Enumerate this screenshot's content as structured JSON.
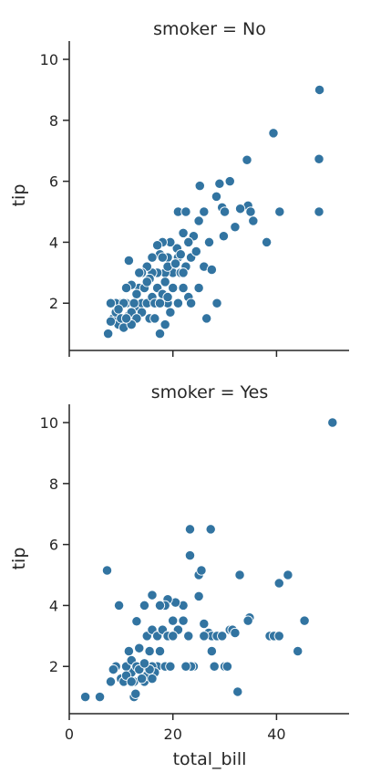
{
  "chart_data": {
    "type": "scatter",
    "xlabel": "total_bill",
    "ylabel": "tip",
    "xlim": [
      0,
      54
    ],
    "ylim": [
      0.45,
      10.6
    ],
    "xticks": [
      0,
      20,
      40
    ],
    "yticks": [
      2,
      4,
      6,
      8,
      10
    ],
    "grid": false,
    "legend": "none",
    "point_color": "#3274A1",
    "facets": [
      {
        "title": "smoker = No",
        "points": [
          [
            48.3,
            9.0
          ],
          [
            39.4,
            7.58
          ],
          [
            48.2,
            6.73
          ],
          [
            34.3,
            6.7
          ],
          [
            48.2,
            5.0
          ],
          [
            40.6,
            5.0
          ],
          [
            25.2,
            5.85
          ],
          [
            29.0,
            5.92
          ],
          [
            31.0,
            6.0
          ],
          [
            21.0,
            5.0
          ],
          [
            22.5,
            5.0
          ],
          [
            26.0,
            5.0
          ],
          [
            29.5,
            5.14
          ],
          [
            30.0,
            5.0
          ],
          [
            34.5,
            5.2
          ],
          [
            35.0,
            5.0
          ],
          [
            35.5,
            4.7
          ],
          [
            32.0,
            4.5
          ],
          [
            38.1,
            4.0
          ],
          [
            28.4,
            5.5
          ],
          [
            33.0,
            5.1
          ],
          [
            29.8,
            4.2
          ],
          [
            27.0,
            4.0
          ],
          [
            25.0,
            4.7
          ],
          [
            24.0,
            4.2
          ],
          [
            23.0,
            4.0
          ],
          [
            22.0,
            4.3
          ],
          [
            20.8,
            3.8
          ],
          [
            19.5,
            4.0
          ],
          [
            18.0,
            4.0
          ],
          [
            17.5,
            3.6
          ],
          [
            19.0,
            3.5
          ],
          [
            21.0,
            3.5
          ],
          [
            23.5,
            3.5
          ],
          [
            24.5,
            3.7
          ],
          [
            26.0,
            3.2
          ],
          [
            27.5,
            3.1
          ],
          [
            25.0,
            2.5
          ],
          [
            28.5,
            2.0
          ],
          [
            26.5,
            1.5
          ],
          [
            22.0,
            2.5
          ],
          [
            23.0,
            2.2
          ],
          [
            20.0,
            3.0
          ],
          [
            21.5,
            3.0
          ],
          [
            22.5,
            3.2
          ],
          [
            18.5,
            3.0
          ],
          [
            17.0,
            3.0
          ],
          [
            16.0,
            3.0
          ],
          [
            15.0,
            3.2
          ],
          [
            14.0,
            3.0
          ],
          [
            13.5,
            2.5
          ],
          [
            12.0,
            2.6
          ],
          [
            11.5,
            3.4
          ],
          [
            11.0,
            2.0
          ],
          [
            10.0,
            2.0
          ],
          [
            9.0,
            2.0
          ],
          [
            8.0,
            2.0
          ],
          [
            7.5,
            1.0
          ],
          [
            8.5,
            1.5
          ],
          [
            9.5,
            1.3
          ],
          [
            10.5,
            1.2
          ],
          [
            9.0,
            1.7
          ],
          [
            10.0,
            1.5
          ],
          [
            11.5,
            1.6
          ],
          [
            12.5,
            1.6
          ],
          [
            13.0,
            1.9
          ],
          [
            14.0,
            2.0
          ],
          [
            15.0,
            2.0
          ],
          [
            16.0,
            2.2
          ],
          [
            17.0,
            2.5
          ],
          [
            18.0,
            2.3
          ],
          [
            19.0,
            2.0
          ],
          [
            20.0,
            2.5
          ],
          [
            15.5,
            1.5
          ],
          [
            16.5,
            1.5
          ],
          [
            17.5,
            1.0
          ],
          [
            18.5,
            1.3
          ],
          [
            19.5,
            1.7
          ],
          [
            14.5,
            2.5
          ],
          [
            13.5,
            3.0
          ],
          [
            12.5,
            2.0
          ],
          [
            11.0,
            2.5
          ],
          [
            16.0,
            3.5
          ],
          [
            17.0,
            3.9
          ],
          [
            18.0,
            3.5
          ],
          [
            19.0,
            3.2
          ],
          [
            20.5,
            3.3
          ],
          [
            21.5,
            3.6
          ],
          [
            22.0,
            3.0
          ],
          [
            18.5,
            2.7
          ],
          [
            15.5,
            2.8
          ],
          [
            13.0,
            2.3
          ],
          [
            10.5,
            2.0
          ],
          [
            9.5,
            1.8
          ],
          [
            8.0,
            1.4
          ],
          [
            12.0,
            1.7
          ],
          [
            16.5,
            2.0
          ],
          [
            17.5,
            2.0
          ],
          [
            19.0,
            2.2
          ],
          [
            21.0,
            2.0
          ],
          [
            23.5,
            2.0
          ],
          [
            15.0,
            2.7
          ],
          [
            14.0,
            1.7
          ],
          [
            13.0,
            1.5
          ],
          [
            12.0,
            1.3
          ],
          [
            11.0,
            1.5
          ]
        ]
      },
      {
        "title": "smoker = Yes",
        "points": [
          [
            50.8,
            10.0
          ],
          [
            23.3,
            6.5
          ],
          [
            27.3,
            6.5
          ],
          [
            23.3,
            5.64
          ],
          [
            7.3,
            5.15
          ],
          [
            25.0,
            5.0
          ],
          [
            25.5,
            5.15
          ],
          [
            32.9,
            5.0
          ],
          [
            42.2,
            5.0
          ],
          [
            40.5,
            4.73
          ],
          [
            34.8,
            3.6
          ],
          [
            34.5,
            3.5
          ],
          [
            45.4,
            3.5
          ],
          [
            38.7,
            3.0
          ],
          [
            39.5,
            3.0
          ],
          [
            40.5,
            3.0
          ],
          [
            44.1,
            2.5
          ],
          [
            30.0,
            2.0
          ],
          [
            30.5,
            2.0
          ],
          [
            32.5,
            1.17
          ],
          [
            26.9,
            3.1
          ],
          [
            27.5,
            3.0
          ],
          [
            28.5,
            3.0
          ],
          [
            29.5,
            3.0
          ],
          [
            31.0,
            3.2
          ],
          [
            31.5,
            3.2
          ],
          [
            32.0,
            3.1
          ],
          [
            26.0,
            3.4
          ],
          [
            25.0,
            4.3
          ],
          [
            22.0,
            4.0
          ],
          [
            20.5,
            4.1
          ],
          [
            19.0,
            4.2
          ],
          [
            18.5,
            4.0
          ],
          [
            17.5,
            4.0
          ],
          [
            16.0,
            4.34
          ],
          [
            14.5,
            4.0
          ],
          [
            9.6,
            4.0
          ],
          [
            13.0,
            3.48
          ],
          [
            15.0,
            3.0
          ],
          [
            16.0,
            3.2
          ],
          [
            17.0,
            3.0
          ],
          [
            18.0,
            3.2
          ],
          [
            19.0,
            3.0
          ],
          [
            20.0,
            3.5
          ],
          [
            21.0,
            3.2
          ],
          [
            22.0,
            3.5
          ],
          [
            23.0,
            3.0
          ],
          [
            24.0,
            2.0
          ],
          [
            23.5,
            2.0
          ],
          [
            22.5,
            2.0
          ],
          [
            28.0,
            2.0
          ],
          [
            27.5,
            2.5
          ],
          [
            26.0,
            3.0
          ],
          [
            17.0,
            2.0
          ],
          [
            16.0,
            2.0
          ],
          [
            15.5,
            2.5
          ],
          [
            14.0,
            2.0
          ],
          [
            13.0,
            2.0
          ],
          [
            12.5,
            1.5
          ],
          [
            12.0,
            1.8
          ],
          [
            11.0,
            2.0
          ],
          [
            10.0,
            1.6
          ],
          [
            11.5,
            2.5
          ],
          [
            12.0,
            2.2
          ],
          [
            13.5,
            2.6
          ],
          [
            13.5,
            2.0
          ],
          [
            14.5,
            1.5
          ],
          [
            15.0,
            1.7
          ],
          [
            16.5,
            1.8
          ],
          [
            12.5,
            1.0
          ],
          [
            12.8,
            1.1
          ],
          [
            10.5,
            1.5
          ],
          [
            9.0,
            2.0
          ],
          [
            8.0,
            1.5
          ],
          [
            8.5,
            1.9
          ],
          [
            3.1,
            1.0
          ],
          [
            5.9,
            1.0
          ],
          [
            13.0,
            2.0
          ],
          [
            14.0,
            1.6
          ],
          [
            15.5,
            1.9
          ],
          [
            16.0,
            1.6
          ],
          [
            11.0,
            1.7
          ],
          [
            12.0,
            1.5
          ],
          [
            13.5,
            1.9
          ],
          [
            14.5,
            2.1
          ],
          [
            17.5,
            2.5
          ],
          [
            18.5,
            2.0
          ],
          [
            19.5,
            2.0
          ],
          [
            20.0,
            3.0
          ]
        ]
      }
    ]
  }
}
